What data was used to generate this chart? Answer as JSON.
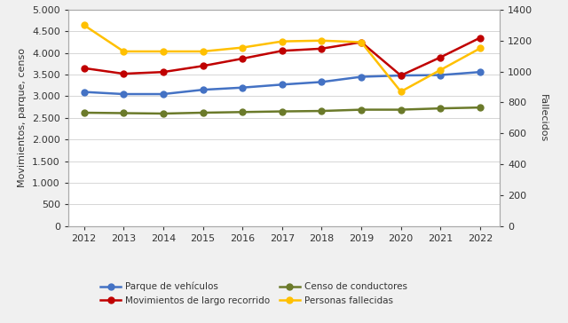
{
  "years": [
    2012,
    2013,
    2014,
    2015,
    2016,
    2017,
    2018,
    2019,
    2020,
    2021,
    2022
  ],
  "parque_vehiculos": [
    3100,
    3050,
    3050,
    3150,
    3200,
    3270,
    3330,
    3450,
    3480,
    3490,
    3560
  ],
  "movimientos_largo": [
    3650,
    3520,
    3560,
    3700,
    3870,
    4050,
    4100,
    4250,
    3480,
    3900,
    4350
  ],
  "censo_conductores": [
    2620,
    2610,
    2600,
    2620,
    2635,
    2650,
    2660,
    2690,
    2690,
    2720,
    2740
  ],
  "personas_fallecidas": [
    1300,
    1130,
    1130,
    1130,
    1155,
    1195,
    1200,
    1190,
    870,
    1010,
    1150
  ],
  "colors": {
    "parque_vehiculos": "#4472C4",
    "movimientos_largo": "#C00000",
    "censo_conductores": "#6B7A2A",
    "personas_fallecidas": "#FFC000"
  },
  "ylabel_left": "Movimientos, parque, censo",
  "ylabel_right": "Fallecidos",
  "ylim_left": [
    0,
    5000
  ],
  "ylim_right": [
    0,
    1400
  ],
  "yticks_left": [
    0,
    500,
    1000,
    1500,
    2000,
    2500,
    3000,
    3500,
    4000,
    4500,
    5000
  ],
  "yticks_right": [
    0,
    200,
    400,
    600,
    800,
    1000,
    1200,
    1400
  ],
  "legend": [
    {
      "label": "Parque de vehículos",
      "color": "#4472C4"
    },
    {
      "label": "Movimientos de largo recorrido",
      "color": "#C00000"
    },
    {
      "label": "Censo de conductores",
      "color": "#6B7A2A"
    },
    {
      "label": "Personas fallecidas",
      "color": "#FFC000"
    }
  ],
  "marker": "o",
  "linewidth": 1.8,
  "markersize": 5,
  "bg_color": "#f0f0f0",
  "plot_bg_color": "#ffffff",
  "grid_color": "#d0d0d0",
  "tick_fontsize": 8,
  "label_fontsize": 8
}
